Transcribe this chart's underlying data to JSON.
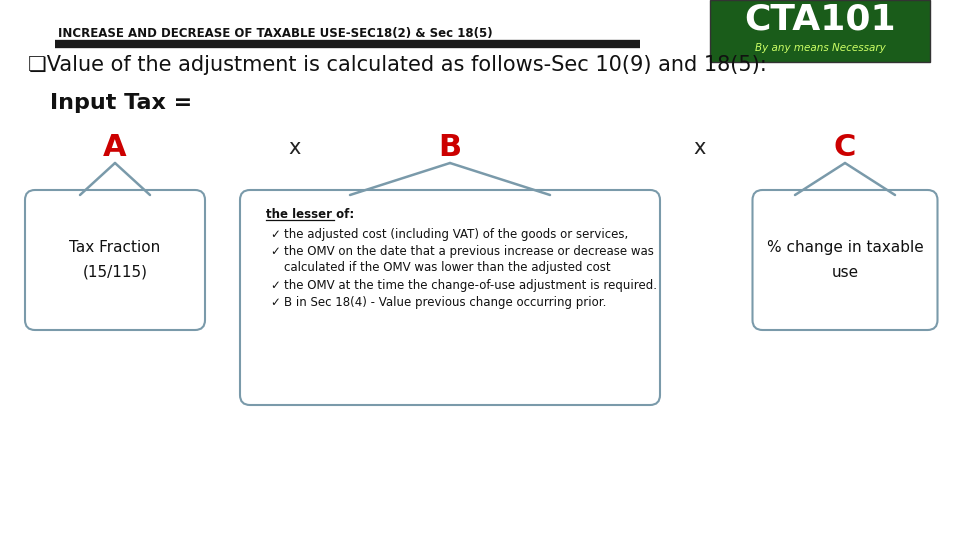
{
  "title": "INCREASE AND DECREASE OF TAXABLE USE-SEC18(2) & Sec 18(5)",
  "title_fontsize": 8.5,
  "bg_color": "#ffffff",
  "header_line_color": "#1a1a1a",
  "subtitle": "❏Value of the adjustment is calculated as follows-Sec 10(9) and 18(5):",
  "subtitle_fontsize": 15,
  "input_tax_label": "Input Tax =",
  "input_tax_fontsize": 16,
  "label_color": "#cc0000",
  "x_color": "#222222",
  "box_A_text": "Tax Fraction\n(15/115)",
  "box_C_text": "% change in taxable\nuse",
  "box_border_color": "#7a9aaa",
  "arrow_color": "#7a9aaa",
  "cta_bg": "#1a5c1a",
  "cta_text1": "CTA101",
  "cta_text2": "By any means Necessary",
  "lesser_of": "the lesser of:",
  "bullet_lines": [
    "the adjusted cost (including VAT) of the goods or services,",
    "the OMV on the date that a previous increase or decrease was\ncalculated if the OMV was lower than the adjusted cost",
    "the OMV at the time the change-of-use adjustment is required.",
    "B in Sec 18(4) - Value previous change occurring prior."
  ]
}
